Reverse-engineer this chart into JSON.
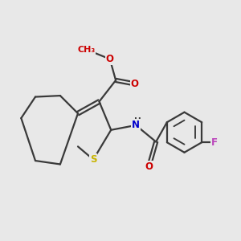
{
  "background_color": "#e8e8e8",
  "bond_color": "#3a3a3a",
  "atom_colors": {
    "S": "#c8b400",
    "O": "#cc0000",
    "N": "#0000cc",
    "F": "#bb44bb",
    "C": "#3a3a3a",
    "H": "#3a3a3a"
  },
  "figsize": [
    3.0,
    3.0
  ],
  "dpi": 100
}
